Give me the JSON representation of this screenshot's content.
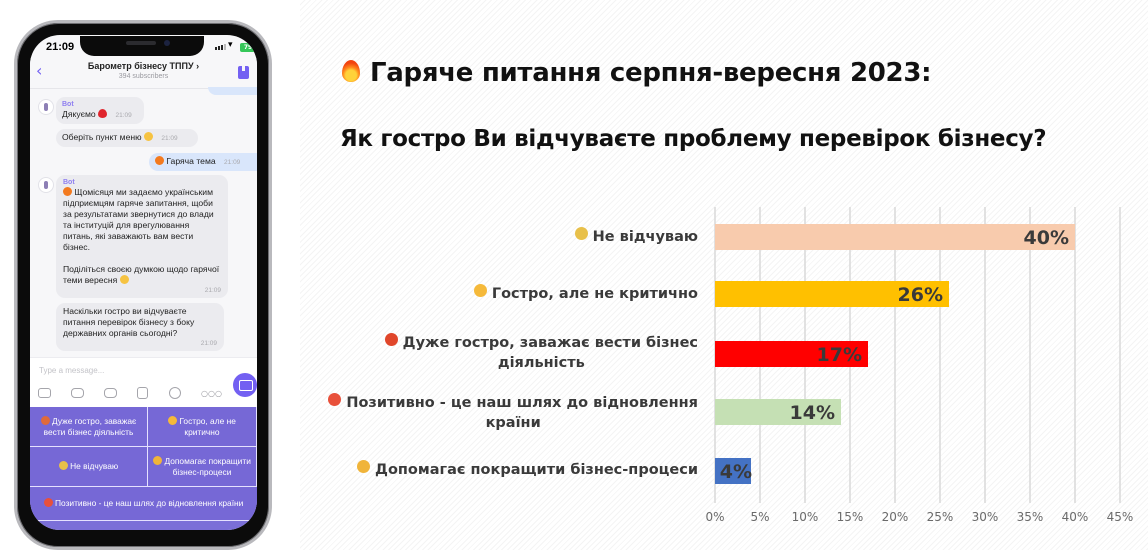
{
  "phone": {
    "status_time": "21:09",
    "battery": "79",
    "chat_title": "Барометр бізнесу ТППУ",
    "chat_title_chevron": "›",
    "subscribers": "394 subscribers",
    "messages": [
      {
        "sender": "Bot",
        "text": "Дякуємо",
        "time": "21:09"
      },
      {
        "text": "Оберіть пункт меню",
        "time": "21:09"
      },
      {
        "text": "Гаряча тема",
        "time": "21:09",
        "outgoing": true
      },
      {
        "sender": "Bot",
        "text": "Щомісяця ми задаємо українським підприємцям гаряче запитання, щоби за результатами звернутися до влади та інституцій для врегулювання питань, які заважають вам вести бізнес.",
        "text2": "Поділіться своєю думкою щодо гарячої теми вересня",
        "time": "21:09"
      },
      {
        "text": "Наскільки гостро ви відчуваєте питання перевірок бізнесу з боку державних органів сьогодні?",
        "time": "21:09"
      }
    ],
    "input_placeholder": "Type a message...",
    "keyboard_buttons": [
      "Дуже гостро, заважає вести бізнес діяльність",
      "Гостро, але не критично",
      "Не відчуваю",
      "Допомагає покращити бізнес-процеси",
      "Позитивно - це наш шлях до відновлення країни"
    ],
    "accent_color": "#7360f2"
  },
  "slide": {
    "title": "Гаряче питання серпня-вересня 2023:",
    "question": "Як гостро Ви відчуваєте проблему перевірок бізнесу?"
  },
  "chart_data": {
    "type": "bar",
    "orientation": "horizontal",
    "title": "Як гостро Ви відчуваєте проблему перевірок бізнесу?",
    "categories": [
      "Не відчуваю",
      "Гостро, але не критично",
      "Дуже гостро, заважає вести бізнес діяльність",
      "Позитивно - це наш шлях до відновлення країни",
      "Допомагає покращити бізнес-процеси"
    ],
    "category_lines": [
      [
        "Не відчуваю"
      ],
      [
        "Гостро, але не критично"
      ],
      [
        "Дуже гостро, заважає вести бізнес",
        "діяльність"
      ],
      [
        "Позитивно - це наш шлях до відновлення",
        "країни"
      ],
      [
        "Допомагає покращити бізнес-процеси"
      ]
    ],
    "values": [
      40,
      26,
      17,
      14,
      4
    ],
    "data_labels": [
      "40%",
      "26%",
      "17%",
      "14%",
      "4%"
    ],
    "colors": [
      "#f8cbad",
      "#ffc000",
      "#ff0000",
      "#c5e0b4",
      "#4472c4"
    ],
    "emoji_colors": [
      "#e8c04a",
      "#f5b93a",
      "#e0462a",
      "#e8503a",
      "#f0b43a"
    ],
    "xlim": [
      0,
      45
    ],
    "xticks": [
      0,
      5,
      10,
      15,
      20,
      25,
      30,
      35,
      40,
      45
    ],
    "xtick_labels": [
      "0%",
      "5%",
      "10%",
      "15%",
      "20%",
      "25%",
      "30%",
      "35%",
      "40%",
      "45%"
    ],
    "grid": true,
    "xlabel": "",
    "ylabel": ""
  }
}
